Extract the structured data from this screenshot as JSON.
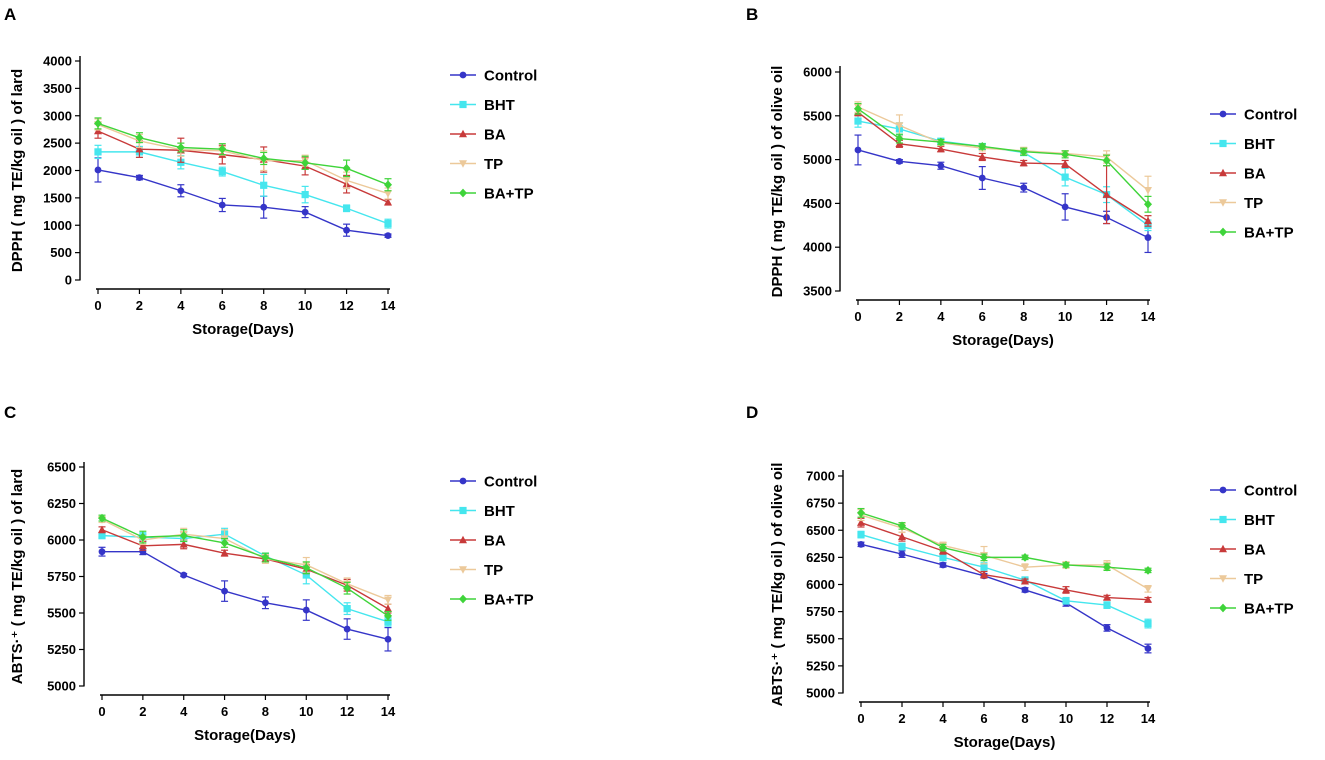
{
  "colors": {
    "Control": "#3535c8",
    "BHT": "#45e6ee",
    "BA": "#c83a3a",
    "TP": "#ecc99a",
    "BA+TP": "#3fd43a"
  },
  "chart_data": [
    {
      "panel": "A",
      "type": "line",
      "xlabel": "Storage(Days)",
      "ylabel": "DPPH ( mg TE/kg oil ) of lard",
      "ylim": [
        0,
        4000
      ],
      "yticks": [
        0,
        500,
        1000,
        1500,
        2000,
        2500,
        3000,
        3500,
        4000
      ],
      "x": [
        0,
        2,
        4,
        6,
        8,
        10,
        12,
        14
      ],
      "series": [
        {
          "name": "Control",
          "marker": "circle",
          "values": [
            2010,
            1870,
            1630,
            1370,
            1330,
            1240,
            910,
            810
          ],
          "errors": [
            220,
            40,
            110,
            120,
            200,
            100,
            110,
            30
          ]
        },
        {
          "name": "BHT",
          "marker": "square",
          "values": [
            2340,
            2340,
            2150,
            1980,
            1730,
            1560,
            1310,
            1030
          ],
          "errors": [
            120,
            100,
            120,
            80,
            200,
            150,
            60,
            80
          ]
        },
        {
          "name": "BA",
          "marker": "triangle",
          "values": [
            2720,
            2390,
            2370,
            2290,
            2200,
            2080,
            1750,
            1420
          ],
          "errors": [
            130,
            150,
            220,
            170,
            230,
            160,
            160,
            50
          ]
        },
        {
          "name": "TP",
          "marker": "triangle-down",
          "values": [
            2840,
            2540,
            2380,
            2360,
            2180,
            2180,
            1820,
            1580
          ],
          "errors": [
            100,
            120,
            120,
            80,
            180,
            100,
            150,
            100
          ]
        },
        {
          "name": "BA+TP",
          "marker": "diamond",
          "values": [
            2860,
            2600,
            2420,
            2390,
            2220,
            2140,
            2040,
            1740
          ],
          "errors": [
            100,
            90,
            80,
            100,
            110,
            120,
            150,
            110
          ]
        }
      ]
    },
    {
      "panel": "B",
      "type": "line",
      "xlabel": "Storage(Days)",
      "ylabel": "DPPH ( mg TE/kg oil ) of olive oil",
      "ylim": [
        3500,
        6000
      ],
      "yticks": [
        3500,
        4000,
        4500,
        5000,
        5500,
        6000
      ],
      "x": [
        0,
        2,
        4,
        6,
        8,
        10,
        12,
        14
      ],
      "series": [
        {
          "name": "Control",
          "marker": "circle",
          "values": [
            5110,
            4980,
            4930,
            4790,
            4680,
            4460,
            4340,
            4110
          ],
          "errors": [
            170,
            20,
            40,
            130,
            50,
            150,
            70,
            170
          ]
        },
        {
          "name": "BHT",
          "marker": "square",
          "values": [
            5440,
            5350,
            5210,
            5150,
            5080,
            4800,
            4600,
            4250
          ],
          "errors": [
            70,
            70,
            30,
            30,
            30,
            100,
            90,
            60
          ]
        },
        {
          "name": "BA",
          "marker": "triangle",
          "values": [
            5540,
            5180,
            5120,
            5030,
            4960,
            4950,
            4600,
            4300
          ],
          "errors": [
            40,
            40,
            30,
            40,
            30,
            40,
            330,
            60
          ]
        },
        {
          "name": "TP",
          "marker": "triangle-down",
          "values": [
            5600,
            5390,
            5190,
            5130,
            5100,
            5070,
            5030,
            4650
          ],
          "errors": [
            60,
            120,
            30,
            30,
            40,
            30,
            70,
            160
          ]
        },
        {
          "name": "BA+TP",
          "marker": "diamond",
          "values": [
            5580,
            5240,
            5200,
            5150,
            5090,
            5060,
            4990,
            4490
          ],
          "errors": [
            60,
            50,
            30,
            30,
            40,
            40,
            60,
            90
          ]
        }
      ]
    },
    {
      "panel": "C",
      "type": "line",
      "xlabel": "Storage(Days)",
      "ylabel": "ABTS·⁺ ( mg TE/kg oil ) of lard",
      "ylim": [
        5000,
        6500
      ],
      "yticks": [
        5000,
        5250,
        5500,
        5750,
        6000,
        6250,
        6500
      ],
      "x": [
        0,
        2,
        4,
        6,
        8,
        10,
        12,
        14
      ],
      "series": [
        {
          "name": "Control",
          "marker": "circle",
          "values": [
            5920,
            5920,
            5760,
            5650,
            5570,
            5520,
            5390,
            5320
          ],
          "errors": [
            30,
            20,
            10,
            70,
            40,
            70,
            70,
            80
          ]
        },
        {
          "name": "BHT",
          "marker": "square",
          "values": [
            6030,
            6020,
            6010,
            6040,
            5890,
            5760,
            5530,
            5440
          ],
          "errors": [
            20,
            30,
            40,
            40,
            20,
            60,
            40,
            30
          ]
        },
        {
          "name": "BA",
          "marker": "triangle",
          "values": [
            6070,
            5960,
            5970,
            5910,
            5870,
            5800,
            5690,
            5530
          ],
          "errors": [
            20,
            30,
            30,
            20,
            20,
            30,
            40,
            30
          ]
        },
        {
          "name": "TP",
          "marker": "triangle-down",
          "values": [
            6140,
            6000,
            6040,
            6010,
            5870,
            5830,
            5700,
            5590
          ],
          "errors": [
            20,
            30,
            40,
            60,
            30,
            50,
            40,
            30
          ]
        },
        {
          "name": "BA+TP",
          "marker": "diamond",
          "values": [
            6150,
            6020,
            6030,
            5980,
            5880,
            5810,
            5670,
            5480
          ],
          "errors": [
            20,
            40,
            40,
            30,
            30,
            40,
            40,
            30
          ]
        }
      ]
    },
    {
      "panel": "D",
      "type": "line",
      "xlabel": "Storage(Days)",
      "ylabel": "ABTS·⁺ ( mg TE/kg oil ) of olive oil",
      "ylim": [
        5000,
        7000
      ],
      "yticks": [
        5000,
        5250,
        5500,
        5750,
        6000,
        6250,
        6500,
        6750,
        7000
      ],
      "x": [
        0,
        2,
        4,
        6,
        8,
        10,
        12,
        14
      ],
      "series": [
        {
          "name": "Control",
          "marker": "circle",
          "values": [
            6370,
            6280,
            6180,
            6080,
            5950,
            5830,
            5600,
            5410
          ],
          "errors": [
            20,
            30,
            20,
            20,
            20,
            30,
            30,
            40
          ]
        },
        {
          "name": "BHT",
          "marker": "square",
          "values": [
            6460,
            6350,
            6250,
            6160,
            6040,
            5850,
            5810,
            5640
          ],
          "errors": [
            30,
            30,
            30,
            40,
            30,
            30,
            30,
            40
          ]
        },
        {
          "name": "BA",
          "marker": "triangle",
          "values": [
            6570,
            6440,
            6310,
            6090,
            6030,
            5950,
            5880,
            5860
          ],
          "errors": [
            40,
            40,
            30,
            30,
            20,
            30,
            20,
            20
          ]
        },
        {
          "name": "TP",
          "marker": "triangle-down",
          "values": [
            6640,
            6520,
            6360,
            6270,
            6160,
            6180,
            6180,
            5960
          ],
          "errors": [
            50,
            40,
            30,
            80,
            30,
            30,
            40,
            30
          ]
        },
        {
          "name": "BA+TP",
          "marker": "diamond",
          "values": [
            6660,
            6540,
            6340,
            6250,
            6250,
            6180,
            6160,
            6130
          ],
          "errors": [
            40,
            30,
            30,
            30,
            20,
            20,
            30,
            20
          ]
        }
      ]
    }
  ]
}
